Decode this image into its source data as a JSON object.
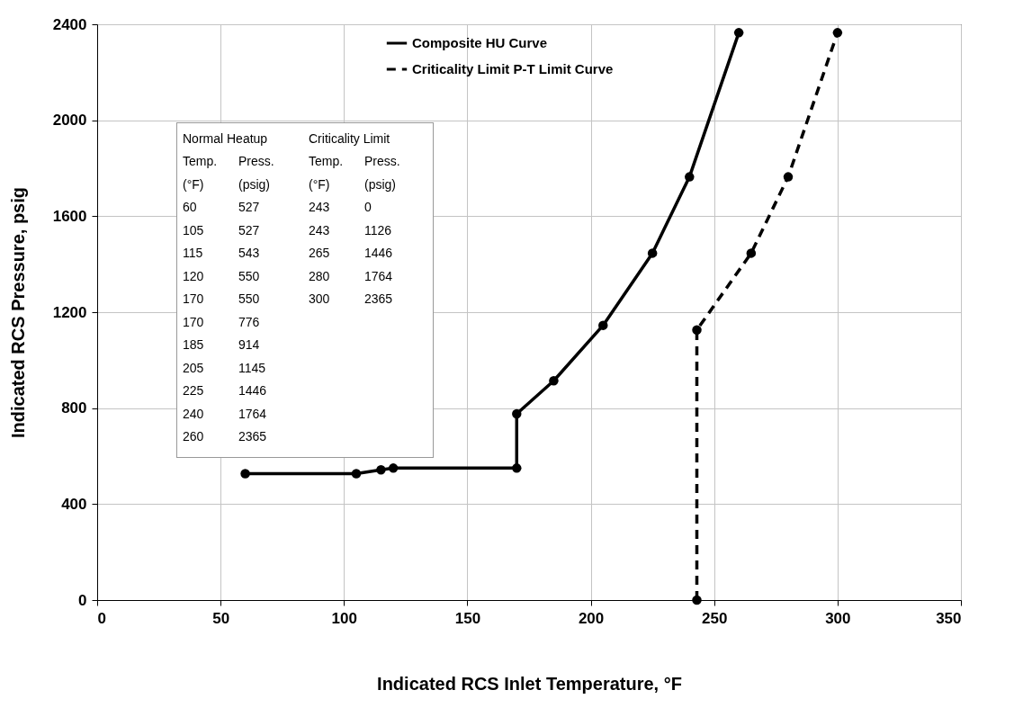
{
  "chart_data": [
    {
      "type": "line",
      "xlabel": "Indicated RCS Inlet Temperature, °F",
      "ylabel": "Indicated RCS Pressure, psig",
      "xlim": [
        0,
        350
      ],
      "xticks": [
        0,
        50,
        100,
        150,
        200,
        250,
        300,
        350
      ],
      "ylim": [
        0,
        2400
      ],
      "yticks": [
        0,
        400,
        800,
        1200,
        1600,
        2000,
        2400
      ],
      "grid": true,
      "legend": "top",
      "marker": "circle",
      "series": [
        {
          "name": "Composite HU Curve",
          "color": "#000000",
          "line_style": "solid",
          "x": [
            60,
            105,
            115,
            120,
            170,
            170,
            185,
            205,
            225,
            240,
            260
          ],
          "values": [
            527,
            527,
            543,
            550,
            550,
            776,
            914,
            1145,
            1446,
            1764,
            2365
          ]
        },
        {
          "name": "Criticality Limit P-T Limit Curve",
          "color": "#000000",
          "line_style": "dashed",
          "x": [
            243,
            243,
            265,
            280,
            300
          ],
          "values": [
            0,
            1126,
            1446,
            1764,
            2365
          ]
        }
      ]
    },
    {
      "type": "other",
      "annotations": [
        "Normal Heatup",
        "Temp.",
        "Press.",
        "(°F)",
        "(psig)",
        "60",
        "527",
        "105",
        "527",
        "115",
        "543",
        "120",
        "550",
        "170",
        "550",
        "170",
        "776",
        "185",
        "914",
        "205",
        "1145",
        "225",
        "1446",
        "240",
        "1764",
        "260",
        "2365"
      ]
    },
    {
      "type": "other",
      "annotations": [
        "Criticality Limit",
        "Temp.",
        "Press.",
        "(°F)",
        "(psig)",
        "243",
        "0",
        "243",
        "1126",
        "265",
        "1446",
        "280",
        "1764",
        "300",
        "2365"
      ]
    }
  ]
}
